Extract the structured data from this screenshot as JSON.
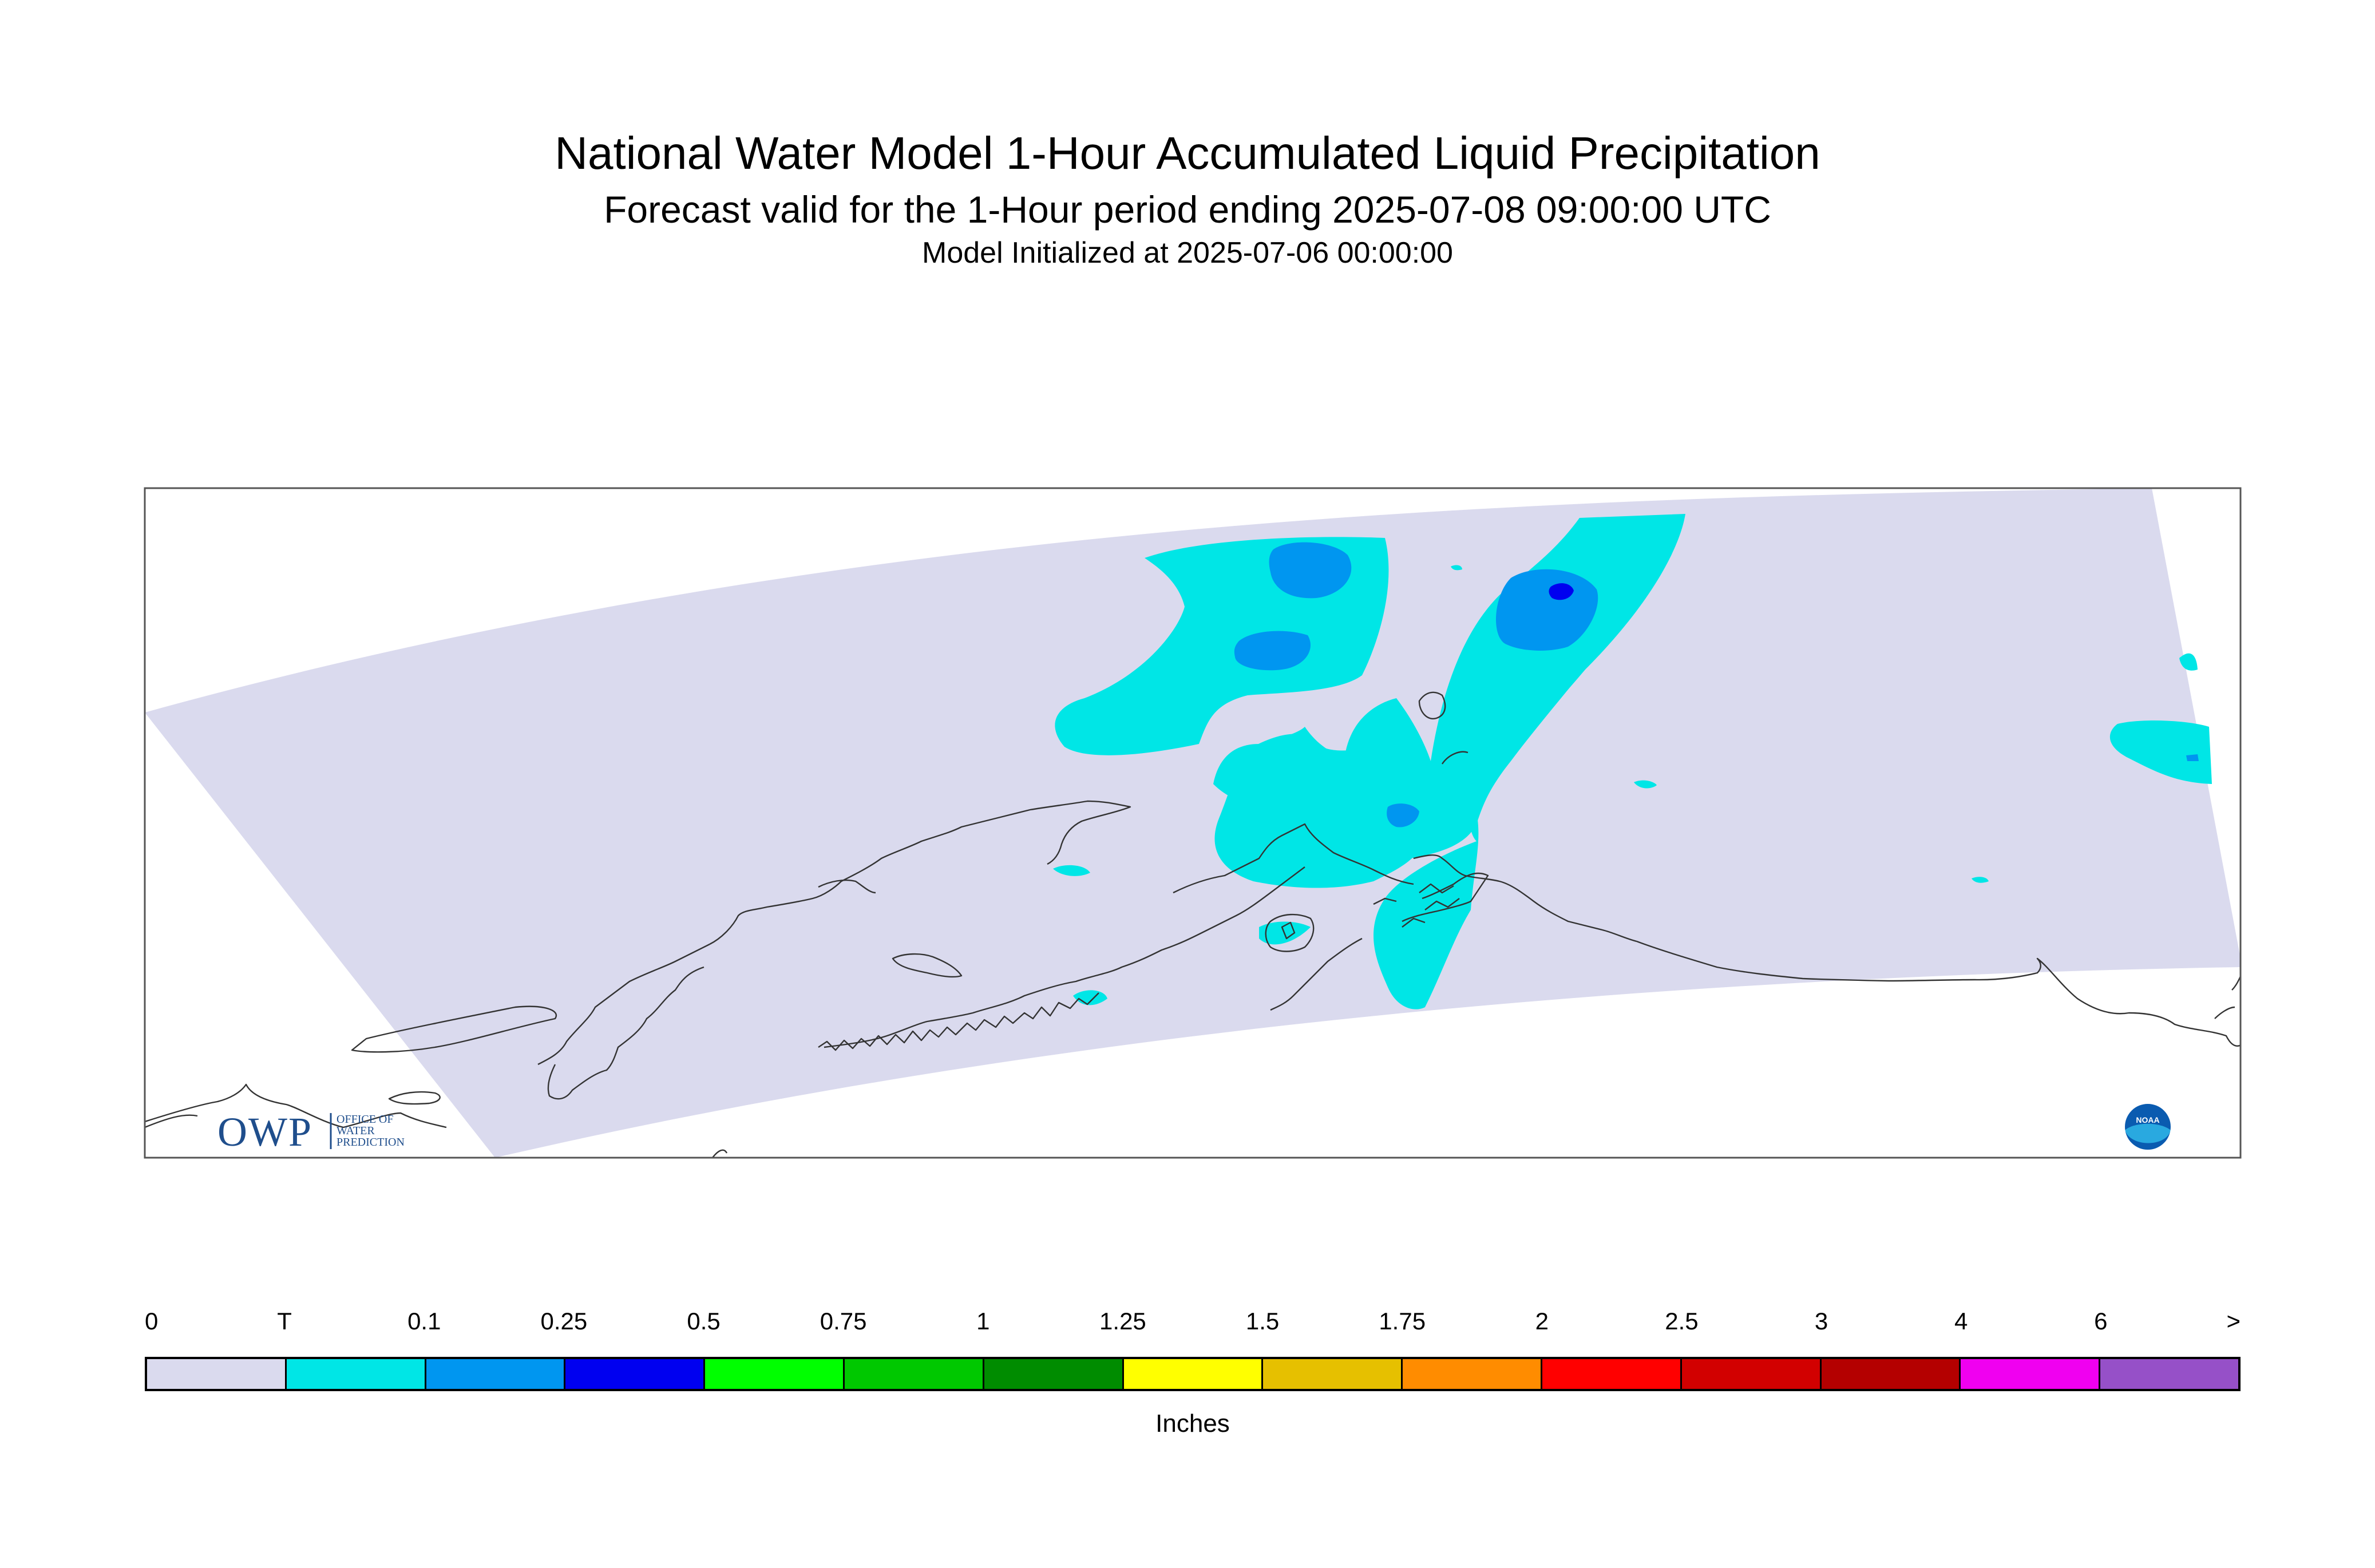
{
  "header": {
    "title": "National Water Model 1-Hour Accumulated Liquid Precipitation",
    "subtitle": "Forecast valid for the 1-Hour period ending 2025-07-08 09:00:00 UTC",
    "initialized": "Model Initialized at 2025-07-06 00:00:00"
  },
  "logos": {
    "owp_letters": "OWP",
    "owp_text": [
      "OFFICE OF",
      "WATER",
      "PREDICTION"
    ],
    "noaa_text": "NOAA"
  },
  "legend": {
    "labels": [
      "0",
      "T",
      "0.1",
      "0.25",
      "0.5",
      "0.75",
      "1",
      "1.25",
      "1.5",
      "1.75",
      "2",
      "2.5",
      "3",
      "4",
      "6",
      ">"
    ],
    "colors": [
      "#dadaee",
      "#00e6e6",
      "#0096f0",
      "#0000f0",
      "#00ff00",
      "#00c800",
      "#008c00",
      "#ffff00",
      "#e6c000",
      "#ff8c00",
      "#ff0000",
      "#d20000",
      "#b40000",
      "#f000f0",
      "#9650c8"
    ],
    "units": "Inches"
  },
  "colors": {
    "domain": "#dadaee",
    "coast": "#333333",
    "frame": "#555555"
  }
}
